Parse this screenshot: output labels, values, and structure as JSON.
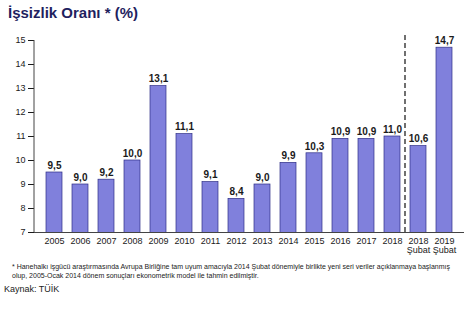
{
  "chart_data": {
    "type": "bar",
    "title": "İşsizlik Oranı * (%)",
    "categories": [
      "2005",
      "2006",
      "2007",
      "2008",
      "2009",
      "2010",
      "2011",
      "2012",
      "2013",
      "2014",
      "2015",
      "2016",
      "2017",
      "2018",
      "2018\nŞubat",
      "2019\nŞubat"
    ],
    "values": [
      9.5,
      9.0,
      9.2,
      10.0,
      13.1,
      11.1,
      9.1,
      8.4,
      9.0,
      9.9,
      10.3,
      10.9,
      10.9,
      11.0,
      10.6,
      14.7
    ],
    "value_labels": [
      "9,5",
      "9,0",
      "9,2",
      "10,0",
      "13,1",
      "11,1",
      "9,1",
      "8,4",
      "9,0",
      "9,9",
      "10,3",
      "10,9",
      "10,9",
      "11,0",
      "10,6",
      "14,7"
    ],
    "color": "#8080dc",
    "ylim": [
      7,
      15
    ],
    "yticks": [
      7,
      8,
      9,
      10,
      11,
      12,
      13,
      14,
      15
    ],
    "grid": false,
    "data_labels": true,
    "footnote": "* Hanehalkı işgücü araştırmasında Avrupa Birliğine tam uyum amacıyla 2014 Şubat dönemiyle birlikte yeni seri veriler açıklanmaya başlanmış olup, 2005-Ocak 2014 dönem sonuçları ekonometrik model ile tahmin edilmiştir.",
    "source": "Kaynak: TÜİK"
  }
}
